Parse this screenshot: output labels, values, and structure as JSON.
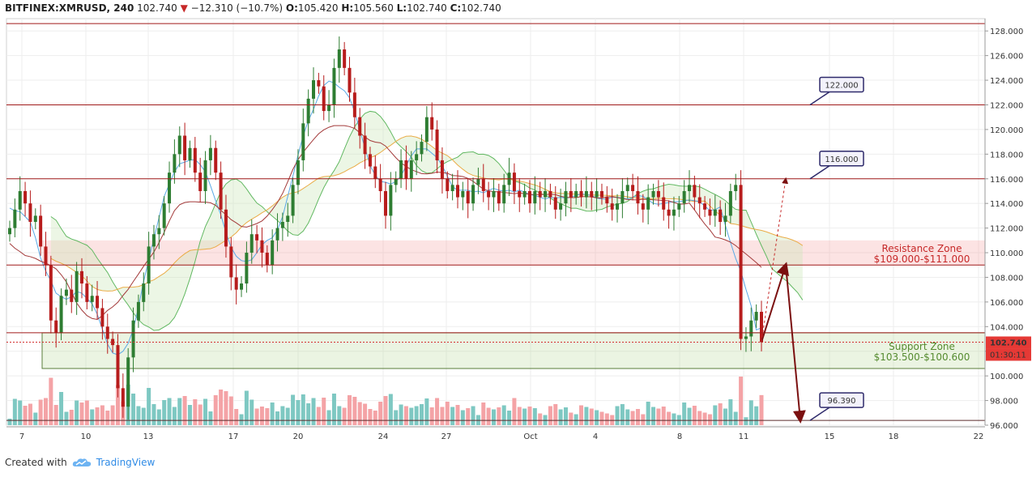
{
  "header": {
    "symbol": "BITFINEX:XMRUSD, 240",
    "last": "102.740",
    "change": "−12.310 (−10.7%)",
    "open_label": "O:",
    "open": "105.420",
    "high_label": "H:",
    "high": "105.560",
    "low_label": "L:",
    "low": "102.740",
    "close_label": "C:",
    "close": "102.740"
  },
  "footer": {
    "created_with": "Created with",
    "brand": "TradingView"
  },
  "price_badge": {
    "price": "102.740",
    "countdown": "01:30:11"
  },
  "colors": {
    "bull": "#2e7d32",
    "bear": "#b71c1c",
    "vol_bull": "#7ec8c2",
    "vol_bear": "#f4a3a6",
    "resistance": "#e57373",
    "support": "#7cb342",
    "callout_border": "#2e2a6b",
    "arrow": "#7b1010"
  },
  "chart_data": {
    "type": "candlestick",
    "symbol": "BITFINEX:XMRUSD",
    "timeframe": "240",
    "y_range": [
      96,
      129
    ],
    "y_ticks": [
      "96.000",
      "98.000",
      "100.000",
      "102.000",
      "104.000",
      "106.000",
      "108.000",
      "110.000",
      "112.000",
      "114.000",
      "116.000",
      "118.000",
      "120.000",
      "122.000",
      "124.000",
      "126.000",
      "128.000"
    ],
    "x_ticks": [
      "7",
      "10",
      "13",
      "17",
      "20",
      "24",
      "27",
      "Oct",
      "4",
      "8",
      "11",
      "15",
      "18",
      "22"
    ],
    "horizontal_levels": [
      128.6,
      122.0,
      116.0,
      109.0,
      103.5,
      96.39
    ],
    "zones": [
      {
        "name": "Resistance Zone",
        "range_label": "$109.000-$111.000",
        "low": 109.0,
        "high": 111.0
      },
      {
        "name": "Support Zone",
        "range_label": "$103.500-$100.600",
        "low": 100.6,
        "high": 103.5
      }
    ],
    "callouts": [
      "122.000",
      "116.000",
      "96.390"
    ],
    "price_path_close": [
      112.0,
      113.5,
      115.0,
      114.0,
      112.5,
      113.0,
      110.5,
      109.0,
      104.5,
      103.5,
      106.5,
      107.0,
      106.0,
      108.5,
      107.5,
      106.0,
      106.5,
      105.5,
      104.0,
      103.0,
      102.5,
      99.0,
      97.5,
      101.5,
      104.5,
      106.0,
      107.5,
      110.5,
      111.5,
      112.0,
      114.0,
      116.5,
      118.0,
      119.5,
      117.5,
      118.5,
      116.5,
      115.0,
      117.5,
      118.5,
      116.5,
      113.5,
      110.5,
      108.0,
      107.0,
      107.5,
      110.0,
      111.5,
      111.0,
      110.0,
      109.0,
      111.0,
      112.0,
      112.5,
      113.0,
      115.5,
      117.5,
      120.5,
      122.5,
      124.0,
      123.5,
      121.5,
      122.0,
      125.0,
      126.5,
      125.0,
      123.0,
      121.0,
      119.5,
      118.0,
      117.0,
      116.0,
      115.0,
      113.0,
      115.5,
      116.0,
      117.5,
      116.0,
      117.5,
      118.0,
      119.0,
      121.0,
      120.0,
      117.5,
      116.0,
      115.0,
      115.5,
      114.5,
      115.0,
      114.0,
      115.5,
      116.0,
      115.0,
      114.5,
      115.0,
      114.0,
      115.5,
      116.5,
      115.0,
      114.5,
      115.0,
      114.0,
      115.0,
      114.5,
      115.0,
      114.5,
      113.5,
      114.0,
      115.0,
      114.5,
      115.0,
      114.5,
      115.0,
      114.5,
      115.0,
      114.5,
      114.0,
      113.5,
      114.0,
      115.0,
      115.5,
      115.0,
      114.0,
      113.5,
      114.5,
      115.0,
      114.5,
      113.5,
      113.0,
      113.5,
      114.0,
      115.0,
      115.5,
      114.5,
      114.0,
      113.5,
      113.0,
      113.5,
      112.5,
      113.0,
      115.0,
      115.5,
      103.0,
      103.2,
      104.5,
      105.2,
      102.74
    ],
    "projection": {
      "solid": [
        [
          102.74,
          109.0,
          96.39
        ]
      ],
      "dashed": [
        [
          102.74,
          116.0
        ]
      ]
    }
  }
}
